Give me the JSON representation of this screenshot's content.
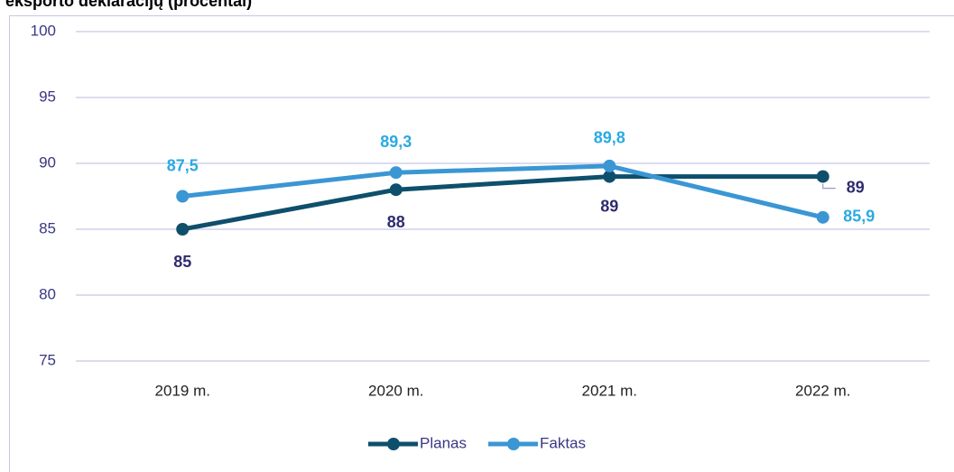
{
  "chart_data": {
    "type": "line",
    "title": "eksporto deklaracijų (procentai)",
    "categories": [
      "2019 m.",
      "2020 m.",
      "2021 m.",
      "2022 m."
    ],
    "series": [
      {
        "name": "Planas",
        "color": "#0e4f6c",
        "label_color": "#2f2b6f",
        "values": [
          85,
          88,
          89,
          89
        ]
      },
      {
        "name": "Faktas",
        "color": "#3b96d4",
        "label_color": "#2aaae2",
        "values": [
          87.5,
          89.3,
          89.8,
          85.9
        ],
        "value_labels": [
          "87,5",
          "89,3",
          "89,8",
          "85,9"
        ]
      }
    ],
    "ylim": [
      75,
      100
    ],
    "yticks": [
      75,
      80,
      85,
      90,
      95,
      100
    ],
    "grid": true,
    "legend": "bottom"
  }
}
